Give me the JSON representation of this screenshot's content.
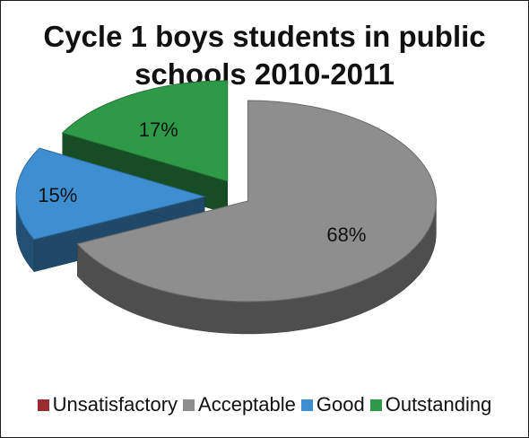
{
  "chart_data": {
    "type": "pie",
    "title_line1": "Cycle 1 boys students in public",
    "title_line2": "schools 2010-2011",
    "slices": [
      {
        "name": "Unsatisfactory",
        "value": 0,
        "label": "",
        "color": "#9b2d30"
      },
      {
        "name": "Acceptable",
        "value": 68,
        "label": "68%",
        "color": "#8e8e8e"
      },
      {
        "name": "Good",
        "value": 15,
        "label": "15%",
        "color": "#3d8fd1"
      },
      {
        "name": "Outstanding",
        "value": 17,
        "label": "17%",
        "color": "#2e9a48"
      }
    ],
    "exploded": true,
    "style": "3d",
    "legend_position": "bottom"
  }
}
